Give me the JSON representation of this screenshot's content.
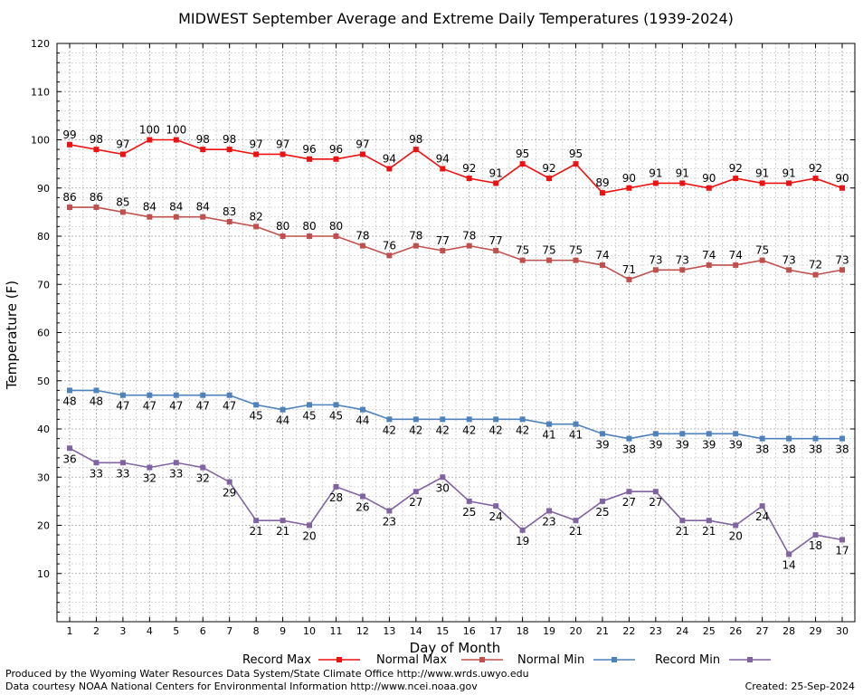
{
  "chart_data": {
    "type": "line",
    "title": "MIDWEST September Average and Extreme Daily Temperatures (1939-2024)",
    "xlabel": "Day of Month",
    "ylabel": "Temperature (F)",
    "xlim": [
      1,
      30
    ],
    "ylim": [
      0,
      120
    ],
    "y_ticks": [
      10,
      20,
      30,
      40,
      50,
      60,
      70,
      80,
      90,
      100,
      110,
      120
    ],
    "x": [
      1,
      2,
      3,
      4,
      5,
      6,
      7,
      8,
      9,
      10,
      11,
      12,
      13,
      14,
      15,
      16,
      17,
      18,
      19,
      20,
      21,
      22,
      23,
      24,
      25,
      26,
      27,
      28,
      29,
      30
    ],
    "grid": true,
    "legend_position": "bottom",
    "series": [
      {
        "name": "Record Max",
        "color": "#ee1111",
        "label_position": "above",
        "values": [
          99,
          98,
          97,
          100,
          100,
          98,
          98,
          97,
          97,
          96,
          96,
          97,
          94,
          98,
          94,
          92,
          91,
          95,
          92,
          95,
          89,
          90,
          91,
          91,
          90,
          92,
          91,
          91,
          92,
          90
        ]
      },
      {
        "name": "Normal Max",
        "color": "#c0504d",
        "label_position": "above",
        "values": [
          86,
          86,
          85,
          84,
          84,
          84,
          83,
          82,
          80,
          80,
          80,
          78,
          76,
          78,
          77,
          78,
          77,
          75,
          75,
          75,
          74,
          71,
          73,
          73,
          74,
          74,
          75,
          73,
          72,
          73
        ]
      },
      {
        "name": "Normal Min",
        "color": "#4f81bd",
        "label_position": "below",
        "values": [
          48,
          48,
          47,
          47,
          47,
          47,
          47,
          45,
          44,
          45,
          45,
          44,
          42,
          42,
          42,
          42,
          42,
          42,
          41,
          41,
          39,
          38,
          39,
          39,
          39,
          39,
          38,
          38,
          38,
          38
        ]
      },
      {
        "name": "Record Min",
        "color": "#8064a2",
        "label_position": "below",
        "values": [
          36,
          33,
          33,
          32,
          33,
          32,
          29,
          21,
          21,
          20,
          28,
          26,
          23,
          27,
          30,
          25,
          24,
          19,
          23,
          21,
          25,
          27,
          27,
          21,
          21,
          20,
          24,
          14,
          18,
          17
        ]
      }
    ]
  },
  "footer": {
    "produced_by": "Produced by the Wyoming Water Resources Data System/State Climate Office http://www.wrds.uwyo.edu",
    "data_source": "Data courtesy NOAA National Centers for Environmental Information http://www.ncei.noaa.gov",
    "created": "Created: 25-Sep-2024"
  }
}
